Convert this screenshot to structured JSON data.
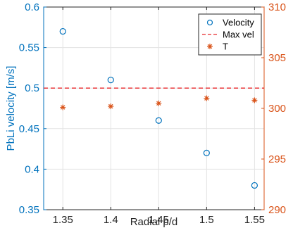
{
  "chart_data": {
    "type": "scatter",
    "xlabel": "Radial p/d",
    "ylabel_left": "PbLi velocity [m/s]",
    "ylabel_right": "",
    "x_ticks": [
      "1.35",
      "1.4",
      "1.45",
      "1.5",
      "1.55"
    ],
    "y_left_ticks": [
      "0.35",
      "0.4",
      "0.45",
      "0.5",
      "0.55",
      "0.6"
    ],
    "y_right_ticks": [
      "290",
      "295",
      "300",
      "305",
      "310"
    ],
    "xlim": [
      1.33,
      1.56
    ],
    "ylim_left": [
      0.35,
      0.6
    ],
    "ylim_right": [
      290,
      310
    ],
    "grid": true,
    "legend_position": "top-right",
    "series": [
      {
        "name": "Velocity",
        "axis": "left",
        "marker": "circle",
        "color": "#0072BD",
        "x": [
          1.35,
          1.4,
          1.45,
          1.5,
          1.55
        ],
        "y": [
          0.57,
          0.51,
          0.46,
          0.42,
          0.38
        ]
      },
      {
        "name": "Max vel",
        "axis": "left",
        "marker": "dashed-line",
        "color": "#E8272A",
        "y_const": 0.5
      },
      {
        "name": "T",
        "axis": "right",
        "marker": "asterisk",
        "color": "#D95319",
        "x": [
          1.35,
          1.4,
          1.45,
          1.5,
          1.55
        ],
        "y": [
          300.1,
          300.2,
          300.5,
          301.0,
          300.8
        ]
      }
    ]
  }
}
